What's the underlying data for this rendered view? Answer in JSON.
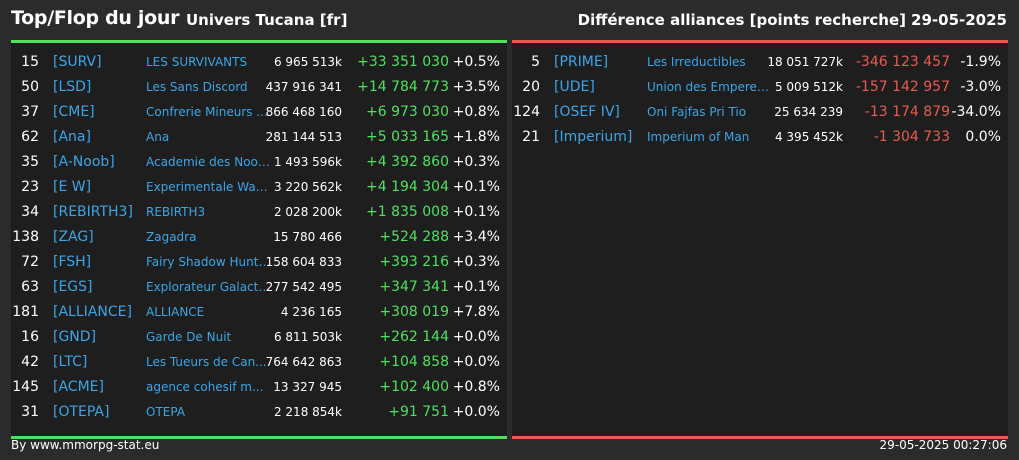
{
  "header": {
    "title": "Top/Flop du jour",
    "universe": "Univers Tucana [fr]",
    "category": "Différence alliances [points recherche]",
    "date": "29-05-2025"
  },
  "colors": {
    "positive": "#4ee25e",
    "negative": "#e85a52",
    "link": "#3aa6e8"
  },
  "top": [
    {
      "rank": "15",
      "tag": "[SURV]",
      "name": "LES SURVIVANTS",
      "points": "6 965 513k",
      "diff": "+33 351 030",
      "pct": "+0.5%"
    },
    {
      "rank": "50",
      "tag": "[LSD]",
      "name": "Les Sans Discord",
      "points": "437 916 341",
      "diff": "+14 784 773",
      "pct": "+3.5%"
    },
    {
      "rank": "37",
      "tag": "[CME]",
      "name": "Confrerie Mineurs ...",
      "points": "866 468 160",
      "diff": "+6 973 030",
      "pct": "+0.8%"
    },
    {
      "rank": "62",
      "tag": "[Ana]",
      "name": "Ana",
      "points": "281 144 513",
      "diff": "+5 033 165",
      "pct": "+1.8%"
    },
    {
      "rank": "35",
      "tag": "[A-Noob]",
      "name": "Academie des Noob...",
      "points": "1 493 596k",
      "diff": "+4 392 860",
      "pct": "+0.3%"
    },
    {
      "rank": "23",
      "tag": "[E W]",
      "name": "Experimentale Wav...",
      "points": "3 220 562k",
      "diff": "+4 194 304",
      "pct": "+0.1%"
    },
    {
      "rank": "34",
      "tag": "[REBIRTH3]",
      "name": "REBIRTH3",
      "points": "2 028 200k",
      "diff": "+1 835 008",
      "pct": "+0.1%"
    },
    {
      "rank": "138",
      "tag": "[ZAG]",
      "name": "Zagadra",
      "points": "15 780 466",
      "diff": "+524 288",
      "pct": "+3.4%"
    },
    {
      "rank": "72",
      "tag": "[FSH]",
      "name": "Fairy Shadow Hunte...",
      "points": "158 604 833",
      "diff": "+393 216",
      "pct": "+0.3%"
    },
    {
      "rank": "63",
      "tag": "[EGS]",
      "name": "Explorateur Galacti...",
      "points": "277 542 495",
      "diff": "+347 341",
      "pct": "+0.1%"
    },
    {
      "rank": "181",
      "tag": "[ALLIANCE]",
      "name": "ALLIANCE",
      "points": "4 236 165",
      "diff": "+308 019",
      "pct": "+7.8%"
    },
    {
      "rank": "16",
      "tag": "[GND]",
      "name": "Garde De Nuit",
      "points": "6 811 503k",
      "diff": "+262 144",
      "pct": "+0.0%"
    },
    {
      "rank": "42",
      "tag": "[LTC]",
      "name": "Les Tueurs de Can...",
      "points": "764 642 863",
      "diff": "+104 858",
      "pct": "+0.0%"
    },
    {
      "rank": "145",
      "tag": "[ACME]",
      "name": "agence cohesif m...",
      "points": "13 327 945",
      "diff": "+102 400",
      "pct": "+0.8%"
    },
    {
      "rank": "31",
      "tag": "[OTEPA]",
      "name": "OTEPA",
      "points": "2 218 854k",
      "diff": "+91 751",
      "pct": "+0.0%"
    }
  ],
  "flop": [
    {
      "rank": "5",
      "tag": "[PRIME]",
      "name": "Les Irreductibles",
      "points": "18 051 727k",
      "diff": "-346 123 457",
      "pct": "-1.9%"
    },
    {
      "rank": "20",
      "tag": "[UDE]",
      "name": "Union des Empereur...",
      "points": "5 009 512k",
      "diff": "-157 142 957",
      "pct": "-3.0%"
    },
    {
      "rank": "124",
      "tag": "[OSEF IV]",
      "name": "Oni Fajfas Pri Tio",
      "points": "25 634 239",
      "diff": "-13 174 879",
      "pct": "-34.0%"
    },
    {
      "rank": "21",
      "tag": "[Imperium]",
      "name": "Imperium of Man",
      "points": "4 395 452k",
      "diff": "-1 304 733",
      "pct": "0.0%"
    }
  ],
  "footer": {
    "source": "By www.mmorpg-stat.eu",
    "timestamp": "29-05-2025 00:27:06"
  }
}
